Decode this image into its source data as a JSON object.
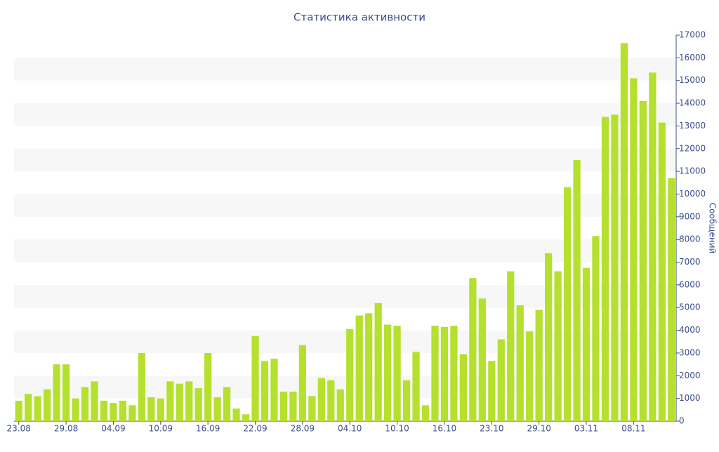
{
  "chart_data": {
    "type": "bar",
    "title": "Статистика активности",
    "y_axis_label": "Сообщений",
    "color": "#b5e02e",
    "grid_bands": true,
    "categories": [
      "23.08",
      null,
      null,
      null,
      null,
      "29.08",
      null,
      null,
      null,
      null,
      "04.09",
      null,
      null,
      null,
      null,
      "10.09",
      null,
      null,
      null,
      null,
      "16.09",
      null,
      null,
      null,
      null,
      "22.09",
      null,
      null,
      null,
      null,
      "28.09",
      null,
      null,
      null,
      null,
      "04.10",
      null,
      null,
      null,
      null,
      "10.10",
      null,
      null,
      null,
      null,
      "16.10",
      null,
      null,
      null,
      null,
      "23.10",
      null,
      null,
      null,
      null,
      "29.10",
      null,
      null,
      null,
      null,
      "03.11",
      null,
      null,
      null,
      null,
      "08.11",
      null,
      null,
      null,
      null
    ],
    "values": [
      900,
      1200,
      1100,
      1400,
      2500,
      2500,
      1000,
      1500,
      1750,
      900,
      800,
      900,
      700,
      3000,
      1050,
      1000,
      1750,
      1650,
      1750,
      1450,
      3000,
      1050,
      1500,
      550,
      300,
      3750,
      2650,
      2750,
      1300,
      1300,
      3350,
      1100,
      1900,
      1800,
      1400,
      4050,
      4650,
      4750,
      5200,
      4250,
      4200,
      1800,
      3050,
      700,
      4200,
      4150,
      4200,
      2950,
      6300,
      5400,
      2650,
      3600,
      6600,
      5100,
      3950,
      4900,
      7400,
      6600,
      10300,
      11500,
      6750,
      8150,
      13400,
      13500,
      16650,
      15100,
      14100,
      15350,
      13150,
      10700
    ],
    "ylim": [
      0,
      17000
    ],
    "yticks": [
      0,
      1000,
      2000,
      3000,
      4000,
      5000,
      6000,
      7000,
      8000,
      9000,
      10000,
      11000,
      12000,
      13000,
      14000,
      15000,
      16000,
      17000
    ]
  }
}
